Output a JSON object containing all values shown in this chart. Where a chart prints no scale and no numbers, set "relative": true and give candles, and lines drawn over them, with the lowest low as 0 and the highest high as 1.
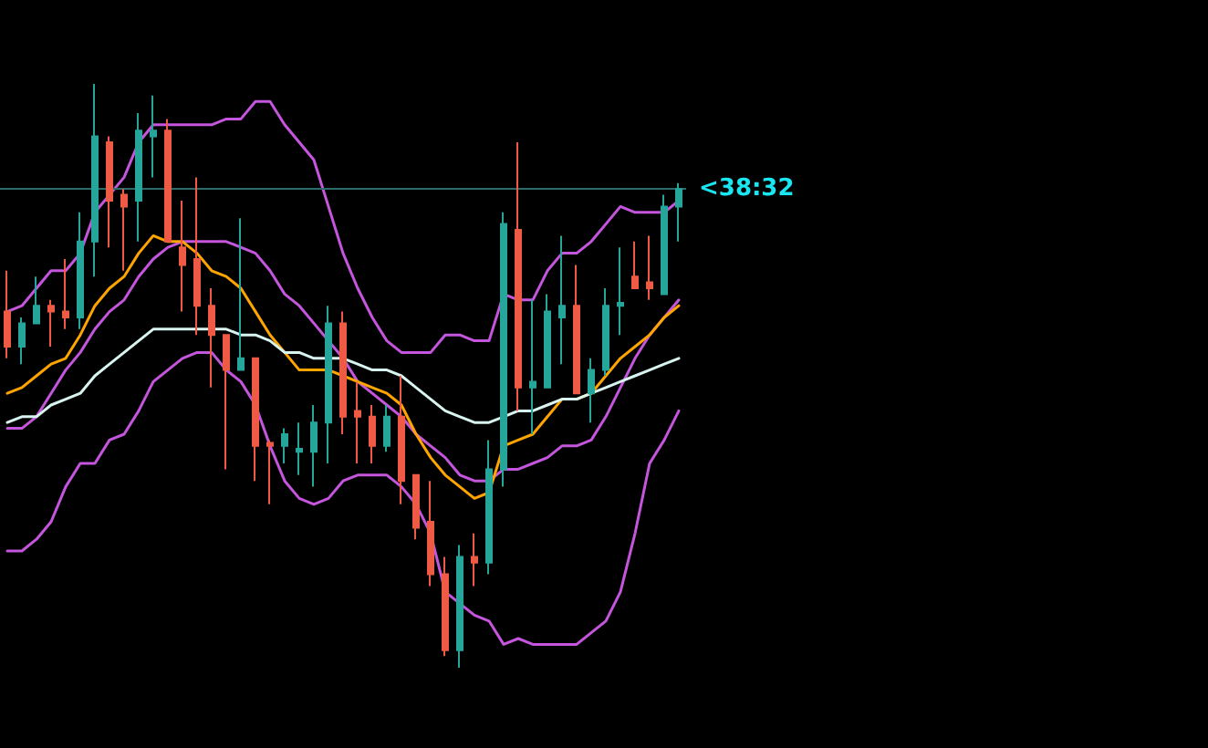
{
  "chart_data": {
    "type": "candlestick",
    "relative": true,
    "line_style": "solid",
    "annotations": [
      "<38:32"
    ],
    "categories": [
      null,
      null,
      null,
      null,
      null,
      null,
      null,
      null,
      null,
      null,
      null,
      null,
      null,
      null,
      null,
      null,
      null,
      null,
      null,
      null,
      null,
      null,
      null,
      null,
      null,
      null,
      null,
      null,
      null,
      null,
      null,
      null,
      null,
      null,
      null,
      null,
      null,
      null,
      null,
      null,
      null,
      null,
      null,
      null,
      null,
      null,
      null
    ],
    "ohlc": [
      [
        0.61,
        0.68,
        0.53,
        0.55
      ],
      [
        0.55,
        0.6,
        0.52,
        0.59
      ],
      [
        0.59,
        0.67,
        0.59,
        0.62
      ],
      [
        0.62,
        0.63,
        0.55,
        0.61
      ],
      [
        0.61,
        0.7,
        0.58,
        0.6
      ],
      [
        0.6,
        0.78,
        0.58,
        0.73
      ],
      [
        0.73,
        1.0,
        0.67,
        0.91
      ],
      [
        0.9,
        0.91,
        0.72,
        0.8
      ],
      [
        0.81,
        0.82,
        0.68,
        0.79
      ],
      [
        0.8,
        0.95,
        0.73,
        0.92
      ],
      [
        0.91,
        0.98,
        0.84,
        0.92
      ],
      [
        0.92,
        0.94,
        0.73,
        0.73
      ],
      [
        0.72,
        0.8,
        0.61,
        0.69
      ],
      [
        0.7,
        0.84,
        0.57,
        0.62
      ],
      [
        0.62,
        0.65,
        0.48,
        0.57
      ],
      [
        0.57,
        0.57,
        0.34,
        0.51
      ],
      [
        0.51,
        0.77,
        0.51,
        0.53
      ],
      [
        0.53,
        0.53,
        0.32,
        0.38
      ],
      [
        0.385,
        0.39,
        0.28,
        0.38
      ],
      [
        0.38,
        0.41,
        0.35,
        0.4
      ],
      [
        0.37,
        0.42,
        0.33,
        0.375
      ],
      [
        0.37,
        0.45,
        0.31,
        0.42
      ],
      [
        0.42,
        0.62,
        0.35,
        0.59
      ],
      [
        0.59,
        0.61,
        0.4,
        0.43
      ],
      [
        0.44,
        0.49,
        0.35,
        0.43
      ],
      [
        0.43,
        0.45,
        0.35,
        0.38
      ],
      [
        0.38,
        0.45,
        0.37,
        0.43
      ],
      [
        0.43,
        0.5,
        0.28,
        0.32
      ],
      [
        0.33,
        0.33,
        0.22,
        0.24
      ],
      [
        0.25,
        0.32,
        0.14,
        0.16
      ],
      [
        0.16,
        0.19,
        0.02,
        0.03
      ],
      [
        0.03,
        0.21,
        0,
        0.19
      ],
      [
        0.19,
        0.23,
        0.14,
        0.18
      ],
      [
        0.18,
        0.39,
        0.16,
        0.34
      ],
      [
        0.34,
        0.78,
        0.31,
        0.76
      ],
      [
        0.75,
        0.9,
        0.44,
        0.48
      ],
      [
        0.48,
        0.63,
        0.4,
        0.49
      ],
      [
        0.48,
        0.64,
        0.48,
        0.61
      ],
      [
        0.6,
        0.74,
        0.52,
        0.62
      ],
      [
        0.62,
        0.69,
        0.47,
        0.47
      ],
      [
        0.47,
        0.53,
        0.42,
        0.51
      ],
      [
        0.51,
        0.65,
        0.5,
        0.62
      ],
      [
        0.62,
        0.72,
        0.57,
        0.625
      ],
      [
        0.67,
        0.73,
        0.65,
        0.65
      ],
      [
        0.66,
        0.74,
        0.63,
        0.65
      ],
      [
        0.64,
        0.81,
        0.64,
        0.79
      ],
      [
        0.79,
        0.83,
        0.73,
        0.82
      ]
    ],
    "colors": [
      "#ef5a45",
      "#26a69a",
      "#26a69a",
      "#ef5a45",
      "#ef5a45",
      "#26a69a",
      "#26a69a",
      "#ef5a45",
      "#ef5a45",
      "#26a69a",
      "#26a69a",
      "#ef5a45",
      "#ef5a45",
      "#ef5a45",
      "#ef5a45",
      "#ef5a45",
      "#26a69a",
      "#ef5a45",
      "#ef5a45",
      "#26a69a",
      "#26a69a",
      "#26a69a",
      "#26a69a",
      "#ef5a45",
      "#ef5a45",
      "#ef5a45",
      "#26a69a",
      "#ef5a45",
      "#ef5a45",
      "#ef5a45",
      "#ef5a45",
      "#26a69a",
      "#ef5a45",
      "#26a69a",
      "#26a69a",
      "#ef5a45",
      "#26a69a",
      "#26a69a",
      "#26a69a",
      "#ef5a45",
      "#26a69a",
      "#26a69a",
      "#26a69a",
      "#ef5a45",
      "#ef5a45",
      "#26a69a",
      "#26a69a"
    ],
    "series": [
      {
        "type": "line",
        "color": "#c455dc",
        "values": [
          0.61,
          0.62,
          0.65,
          0.68,
          0.68,
          0.71,
          0.78,
          0.81,
          0.84,
          0.9,
          0.93,
          0.93,
          0.93,
          0.93,
          0.93,
          0.94,
          0.94,
          0.97,
          0.97,
          0.93,
          0.9,
          0.87,
          0.79,
          0.71,
          0.65,
          0.6,
          0.56,
          0.54,
          0.54,
          0.54,
          0.57,
          0.57,
          0.56,
          0.56,
          0.64,
          0.63,
          0.63,
          0.68,
          0.71,
          0.71,
          0.73,
          0.76,
          0.79,
          0.78,
          0.78,
          0.78,
          0.8
        ]
      },
      {
        "type": "line",
        "color": "#c455dc",
        "values": [
          0.41,
          0.41,
          0.43,
          0.47,
          0.51,
          0.54,
          0.58,
          0.61,
          0.63,
          0.67,
          0.7,
          0.72,
          0.73,
          0.73,
          0.73,
          0.73,
          0.72,
          0.71,
          0.68,
          0.64,
          0.62,
          0.59,
          0.56,
          0.53,
          0.49,
          0.47,
          0.45,
          0.43,
          0.4,
          0.38,
          0.36,
          0.33,
          0.32,
          0.32,
          0.34,
          0.34,
          0.35,
          0.36,
          0.38,
          0.38,
          0.39,
          0.43,
          0.48,
          0.53,
          0.57,
          0.6,
          0.63
        ]
      },
      {
        "type": "line",
        "color": "#c455dc",
        "values": [
          0.2,
          0.2,
          0.22,
          0.25,
          0.31,
          0.35,
          0.35,
          0.39,
          0.4,
          0.44,
          0.49,
          0.51,
          0.53,
          0.54,
          0.54,
          0.51,
          0.49,
          0.45,
          0.38,
          0.32,
          0.29,
          0.28,
          0.29,
          0.32,
          0.33,
          0.33,
          0.33,
          0.31,
          0.28,
          0.23,
          0.13,
          0.11,
          0.09,
          0.08,
          0.04,
          0.05,
          0.04,
          0.04,
          0.04,
          0.04,
          0.06,
          0.08,
          0.13,
          0.23,
          0.35,
          0.39,
          0.44
        ]
      },
      {
        "type": "line",
        "color": "#ffa500",
        "values": [
          0.47,
          0.48,
          0.5,
          0.52,
          0.53,
          0.57,
          0.62,
          0.65,
          0.67,
          0.71,
          0.74,
          0.73,
          0.73,
          0.71,
          0.68,
          0.67,
          0.65,
          0.61,
          0.57,
          0.54,
          0.51,
          0.51,
          0.51,
          0.5,
          0.49,
          0.48,
          0.47,
          0.45,
          0.4,
          0.36,
          0.33,
          0.31,
          0.29,
          0.3,
          0.38,
          0.39,
          0.4,
          0.43,
          0.46,
          0.46,
          0.47,
          0.5,
          0.53,
          0.55,
          0.57,
          0.6,
          0.62
        ]
      },
      {
        "type": "line",
        "color": "#d8f4f0",
        "values": [
          0.42,
          0.43,
          0.43,
          0.45,
          0.46,
          0.47,
          0.5,
          0.52,
          0.54,
          0.56,
          0.58,
          0.58,
          0.58,
          0.58,
          0.58,
          0.58,
          0.57,
          0.57,
          0.56,
          0.54,
          0.54,
          0.53,
          0.53,
          0.53,
          0.52,
          0.51,
          0.51,
          0.5,
          0.48,
          0.46,
          0.44,
          0.43,
          0.42,
          0.42,
          0.43,
          0.44,
          0.44,
          0.45,
          0.46,
          0.46,
          0.47,
          0.48,
          0.49,
          0.5,
          0.51,
          0.52,
          0.53
        ]
      }
    ],
    "ref_lines": [
      {
        "axis": "y",
        "value": 0.82,
        "color": "#2e6b6b"
      }
    ]
  }
}
